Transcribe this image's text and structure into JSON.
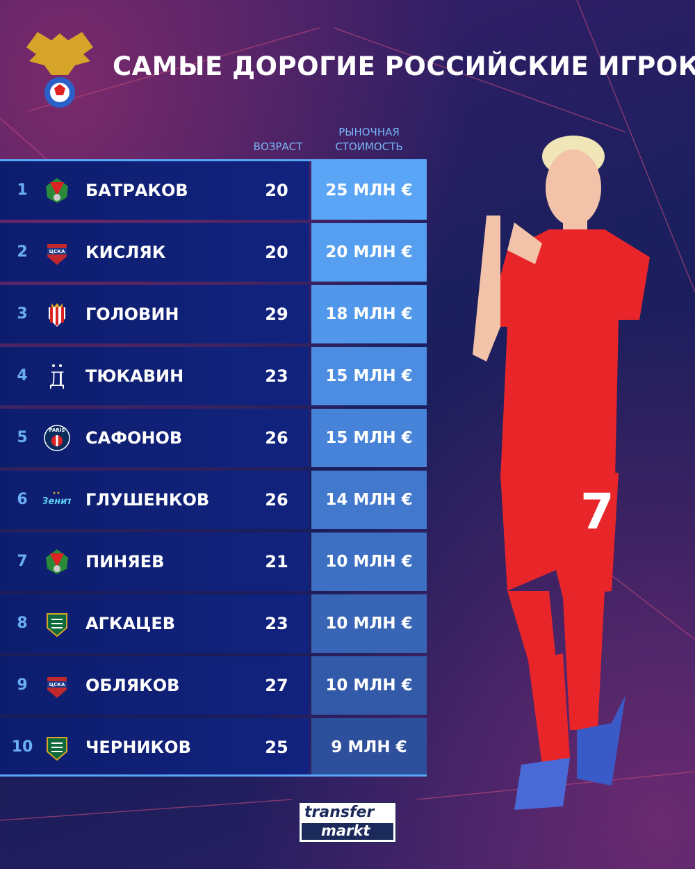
{
  "title": "САМЫЕ ДОРОГИЕ РОССИЙСКИЕ ИГРОКИ",
  "columns": {
    "age": "ВОЗРАСТ",
    "value_line1": "РЫНОЧНАЯ",
    "value_line2": "СТОИМОСТЬ"
  },
  "players": [
    {
      "rank": "1",
      "name": "БАТРАКОВ",
      "age": "20",
      "value": "25 МЛН €",
      "club_icon": "lokomotiv-logo",
      "color": "#5aa5f5"
    },
    {
      "rank": "2",
      "name": "КИСЛЯК",
      "age": "20",
      "value": "20 МЛН €",
      "club_icon": "cska-logo",
      "club_text": "ЦСКА",
      "color": "#559ef0"
    },
    {
      "rank": "3",
      "name": "ГОЛОВИН",
      "age": "29",
      "value": "18 МЛН €",
      "club_icon": "monaco-logo",
      "color": "#5197ea"
    },
    {
      "rank": "4",
      "name": "ТЮКАВИН",
      "age": "23",
      "value": "15 МЛН €",
      "club_icon": "dynamo-logo",
      "color": "#4c8de2"
    },
    {
      "rank": "5",
      "name": "САФОНОВ",
      "age": "26",
      "value": "15 МЛН €",
      "club_icon": "psg-logo",
      "club_text": "PARIS",
      "color": "#4783d8"
    },
    {
      "rank": "6",
      "name": "ГЛУШЕНКОВ",
      "age": "26",
      "value": "14 МЛН €",
      "club_icon": "zenit-logo",
      "club_text": "Зенит",
      "color": "#4279cd"
    },
    {
      "rank": "7",
      "name": "ПИНЯЕВ",
      "age": "21",
      "value": "10 МЛН €",
      "club_icon": "lokomotiv-logo",
      "color": "#3d6fc2"
    },
    {
      "rank": "8",
      "name": "АГКАЦЕВ",
      "age": "23",
      "value": "10 МЛН €",
      "club_icon": "krasnodar-logo",
      "color": "#3865b6"
    },
    {
      "rank": "9",
      "name": "ОБЛЯКОВ",
      "age": "27",
      "value": "10 МЛН €",
      "club_icon": "cska-logo",
      "club_text": "ЦСКА",
      "color": "#335aa9"
    },
    {
      "rank": "10",
      "name": "ЧЕРНИКОВ",
      "age": "25",
      "value": "9 МЛН €",
      "club_icon": "krasnodar-logo",
      "color": "#2e4f9c"
    }
  ],
  "footer": {
    "brand_line1": "transfer",
    "brand_line2": "markt"
  },
  "player_number": "7"
}
